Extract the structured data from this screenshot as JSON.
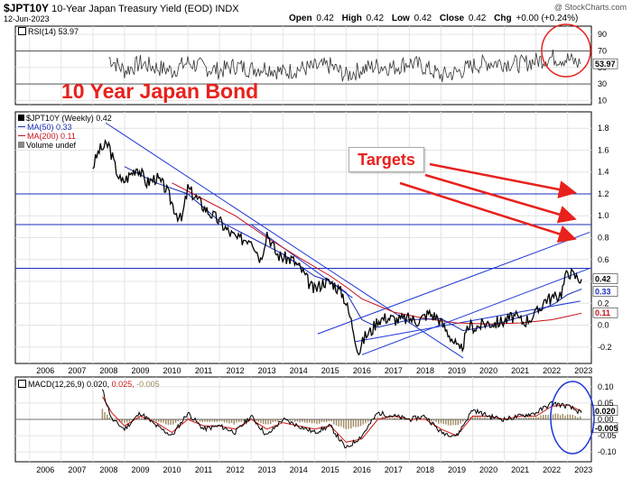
{
  "header": {
    "symbol": "$JPT10Y",
    "title": "10-Year Japan Treasury Yield (EOD)",
    "exchange": "INDX",
    "date": "12-Jun-2023",
    "credit": "@ StockCharts.com",
    "open_label": "Open",
    "open": "0.42",
    "high_label": "High",
    "high": "0.42",
    "low_label": "Low",
    "low": "0.42",
    "close_label": "Close",
    "close": "0.42",
    "chg_label": "Chg",
    "chg": "+0.00 (+0.24%)"
  },
  "rsi_panel": {
    "legend": "RSI(14) 53.97",
    "last_label": "53.97"
  },
  "price_panel": {
    "legend": [
      "$JPT10Y (Weekly) 0.42",
      "MA(50) 0.33",
      "MA(200) 0.11",
      "Volume undef"
    ],
    "last_labels": [
      "0.42",
      "0.33",
      "0.11"
    ]
  },
  "macd_panel": {
    "legend_name": "MACD(12,26,9)",
    "legend_v1": "0.020,",
    "legend_v2": "0.025,",
    "legend_v3": "-0.005",
    "last_labels": [
      "0.020",
      "-0.005"
    ]
  },
  "annotations": {
    "title": "10 Year Japan Bond",
    "targets": "Targets"
  },
  "colors": {
    "annotation": "#e8211c",
    "price": "#000000",
    "ma50": "#1a2fb8",
    "ma200": "#c8101c",
    "trend": "#1c36d8",
    "volume_hist": "#a08a60",
    "macd_signal": "#d01818"
  },
  "chart_data": [
    {
      "type": "line",
      "title": "RSI(14)",
      "x": [
        2008.5,
        2009,
        2009.5,
        2010,
        2010.5,
        2011,
        2011.5,
        2012,
        2012.5,
        2013,
        2013.5,
        2014,
        2014.5,
        2015,
        2015.5,
        2016,
        2016.5,
        2017,
        2017.5,
        2018,
        2018.5,
        2019,
        2019.5,
        2020,
        2020.5,
        2021,
        2021.5,
        2022,
        2022.5,
        2023,
        2023.4
      ],
      "values": [
        62,
        46,
        55,
        50,
        46,
        56,
        50,
        46,
        52,
        48,
        50,
        44,
        48,
        50,
        52,
        40,
        48,
        52,
        50,
        56,
        50,
        40,
        44,
        52,
        56,
        56,
        54,
        58,
        62,
        60,
        54
      ],
      "ylim": [
        5,
        100
      ],
      "yticks": [
        10,
        30,
        50,
        70,
        90
      ],
      "last_value": 53.97
    },
    {
      "type": "line",
      "title": "$JPT10Y (Weekly)",
      "x_ticks": [
        "2006",
        "2007",
        "2008",
        "2009",
        "2010",
        "2011",
        "2012",
        "2013",
        "2014",
        "2015",
        "2016",
        "2017",
        "2018",
        "2019",
        "2020",
        "2021",
        "2022",
        "2023"
      ],
      "ylim": [
        -0.35,
        1.95
      ],
      "yticks": [
        -0.2,
        0.0,
        0.2,
        0.4,
        0.6,
        0.8,
        1.0,
        1.2,
        1.4,
        1.6,
        1.8
      ],
      "series": [
        {
          "name": "$JPT10Y",
          "x": [
            2008.0,
            2008.2,
            2008.5,
            2008.7,
            2008.9,
            2009.1,
            2009.4,
            2009.7,
            2010.0,
            2010.3,
            2010.6,
            2010.8,
            2011.0,
            2011.3,
            2011.6,
            2012.0,
            2012.3,
            2012.6,
            2013.0,
            2013.3,
            2013.5,
            2013.8,
            2014.0,
            2014.3,
            2014.6,
            2014.9,
            2015.0,
            2015.3,
            2015.6,
            2015.9,
            2016.0,
            2016.2,
            2016.4,
            2016.6,
            2016.8,
            2017.0,
            2017.3,
            2017.6,
            2018.0,
            2018.3,
            2018.6,
            2018.9,
            2019.1,
            2019.3,
            2019.6,
            2019.9,
            2020.1,
            2020.4,
            2020.7,
            2021.0,
            2021.3,
            2021.6,
            2022.0,
            2022.3,
            2022.6,
            2022.8,
            2023.0,
            2023.2,
            2023.44
          ],
          "values": [
            1.45,
            1.6,
            1.65,
            1.45,
            1.3,
            1.35,
            1.45,
            1.3,
            1.35,
            1.25,
            1.05,
            0.95,
            1.25,
            1.15,
            1.05,
            0.95,
            0.85,
            0.78,
            0.8,
            0.6,
            0.85,
            0.65,
            0.62,
            0.6,
            0.5,
            0.35,
            0.32,
            0.4,
            0.38,
            0.28,
            0.2,
            0.0,
            -0.25,
            -0.1,
            -0.05,
            0.05,
            0.07,
            0.05,
            0.06,
            0.04,
            0.11,
            0.07,
            -0.02,
            -0.1,
            -0.25,
            0.0,
            -0.02,
            0.02,
            0.02,
            0.04,
            0.08,
            0.03,
            0.1,
            0.24,
            0.25,
            0.3,
            0.5,
            0.45,
            0.42
          ]
        },
        {
          "name": "MA(50)",
          "x": [
            2009.0,
            2010.0,
            2011.0,
            2012.0,
            2013.0,
            2014.0,
            2015.0,
            2015.5,
            2016.0,
            2016.5,
            2017.0,
            2018.0,
            2019.0,
            2019.7,
            2020.3,
            2021.0,
            2022.0,
            2022.6,
            2023.0,
            2023.44
          ],
          "values": [
            1.45,
            1.3,
            1.2,
            0.95,
            0.8,
            0.65,
            0.45,
            0.4,
            0.3,
            0.05,
            -0.02,
            0.05,
            0.06,
            -0.05,
            -0.02,
            0.03,
            0.12,
            0.2,
            0.28,
            0.33
          ]
        },
        {
          "name": "MA(200)",
          "x": [
            2010.5,
            2011.5,
            2012.5,
            2013.5,
            2014.5,
            2015.5,
            2016.0,
            2016.5,
            2017.5,
            2018.5,
            2019.5,
            2020.5,
            2021.5,
            2022.5,
            2023.0,
            2023.44
          ],
          "values": [
            1.3,
            1.15,
            1.0,
            0.8,
            0.62,
            0.45,
            0.35,
            0.24,
            0.12,
            0.06,
            0.02,
            0.01,
            0.02,
            0.05,
            0.08,
            0.11
          ]
        }
      ],
      "horizontal_lines": [
        1.2,
        0.92,
        0.52
      ],
      "trend_lines": [
        {
          "from": [
            2008.4,
            1.85
          ],
          "to": [
            2019.7,
            -0.3
          ]
        },
        {
          "from": [
            2015.1,
            -0.08
          ],
          "to": [
            2023.7,
            0.85
          ]
        },
        {
          "from": [
            2016.5,
            -0.27
          ],
          "to": [
            2023.7,
            0.52
          ]
        },
        {
          "from": [
            2016.3,
            -0.15
          ],
          "to": [
            2023.4,
            0.22
          ]
        },
        {
          "from": [
            2013.0,
            0.92
          ],
          "to": [
            2016.2,
            0.25
          ]
        }
      ],
      "last_values": {
        "price": 0.42,
        "ma50": 0.33,
        "ma200": 0.11
      }
    },
    {
      "type": "line",
      "title": "MACD(12,26,9)",
      "ylim": [
        -0.13,
        0.13
      ],
      "yticks": [
        -0.1,
        -0.05,
        0.0,
        0.05,
        0.1
      ],
      "series": [
        {
          "name": "MACD",
          "x": [
            2008.3,
            2008.6,
            2009.0,
            2009.5,
            2010.0,
            2010.5,
            2011.0,
            2011.5,
            2012.0,
            2012.5,
            2013.0,
            2013.5,
            2014.0,
            2014.5,
            2015.0,
            2015.5,
            2016.0,
            2016.5,
            2017.0,
            2017.5,
            2018.0,
            2018.5,
            2019.0,
            2019.5,
            2020.0,
            2020.5,
            2021.0,
            2021.5,
            2022.0,
            2022.5,
            2023.0,
            2023.44
          ],
          "values": [
            0.09,
            0.0,
            -0.03,
            0.02,
            -0.02,
            -0.05,
            0.02,
            -0.03,
            -0.02,
            -0.04,
            0.01,
            -0.05,
            0.0,
            -0.02,
            -0.04,
            -0.02,
            -0.09,
            -0.05,
            0.02,
            0.01,
            0.0,
            0.01,
            -0.04,
            -0.05,
            0.03,
            0.01,
            0.0,
            0.01,
            0.02,
            0.05,
            0.04,
            0.02
          ]
        },
        {
          "name": "Signal",
          "x": [
            2008.3,
            2008.6,
            2009.0,
            2009.5,
            2010.0,
            2010.5,
            2011.0,
            2011.5,
            2012.0,
            2012.5,
            2013.0,
            2013.5,
            2014.0,
            2014.5,
            2015.0,
            2015.5,
            2016.0,
            2016.5,
            2017.0,
            2017.5,
            2018.0,
            2018.5,
            2019.0,
            2019.5,
            2020.0,
            2020.5,
            2021.0,
            2021.5,
            2022.0,
            2022.5,
            2023.0,
            2023.44
          ],
          "values": [
            0.07,
            0.02,
            -0.02,
            0.01,
            -0.01,
            -0.04,
            0.0,
            -0.02,
            -0.02,
            -0.03,
            0.0,
            -0.03,
            -0.01,
            -0.02,
            -0.03,
            -0.02,
            -0.07,
            -0.06,
            0.0,
            0.01,
            0.0,
            0.0,
            -0.03,
            -0.05,
            0.01,
            0.01,
            0.0,
            0.01,
            0.01,
            0.04,
            0.045,
            0.025
          ]
        }
      ],
      "last_values": {
        "macd": 0.02,
        "signal": 0.025,
        "histogram": -0.005
      }
    }
  ]
}
